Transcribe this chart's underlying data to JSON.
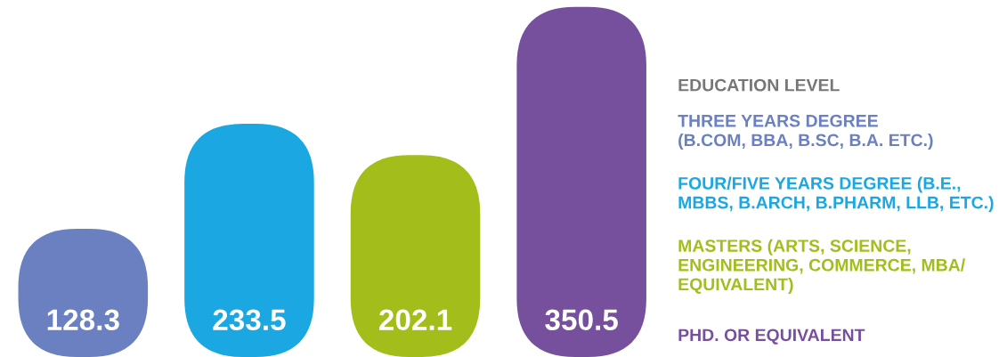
{
  "chart_data": {
    "type": "bar",
    "categories": [
      null,
      null,
      null,
      null
    ],
    "values": [
      128.3,
      233.5,
      202.1,
      350.5
    ],
    "colors": [
      "#6a80c0",
      "#1ba7e1",
      "#a3bd1a",
      "#77509d"
    ],
    "legend_title": "EDUCATION LEVEL",
    "annotations": [
      "THREE YEARS DEGREE\n(B.COM, BBA, B.SC, B.A. ETC.)",
      "FOUR/FIVE YEARS DEGREE (B.E.,\nMBBS, B.ARCH, B.PHARM, LLB, ETC.)",
      "MASTERS (ARTS, SCIENCE,\nENGINEERING, COMMERCE, MBA/\nEQUIVALENT)",
      "PHD. OR EQUIVALENT"
    ],
    "data_labels": true
  }
}
